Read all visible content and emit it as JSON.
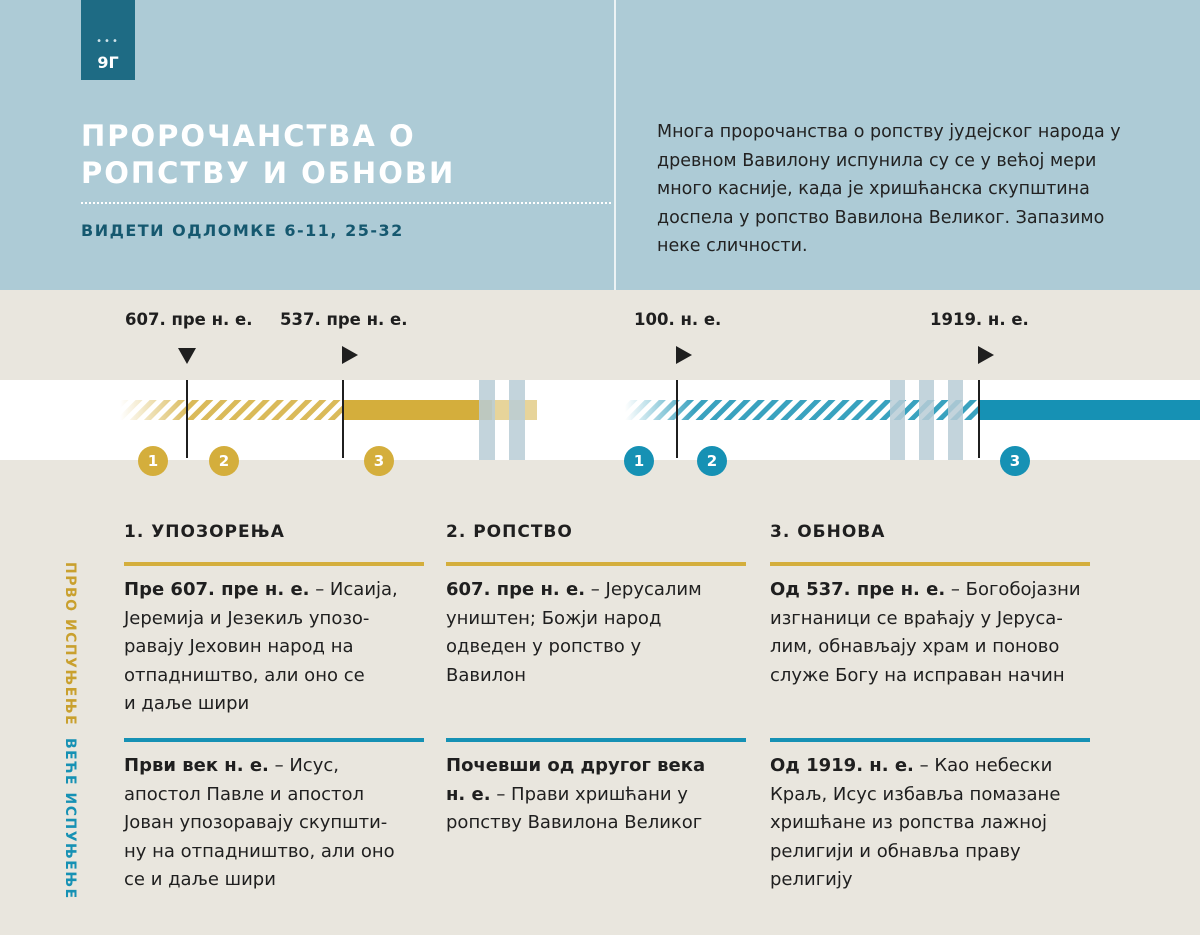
{
  "badge": {
    "label": "9Г",
    "dots": "•••"
  },
  "header": {
    "title_line1": "ПРОРОЧАНСТВА О",
    "title_line2": "РОПСТВУ И ОБНОВИ",
    "subtitle": "ВИДЕТИ ОДЛОМКЕ 6-11, 25-32",
    "intro": "Многа пророчанства о ропству јудејског народа у древном Вавилону испунила су се у већој мери много касније, када је хришћанска скупштина доспела у ропство Вавилона Великог. Запазимо неке сличности."
  },
  "timeline": {
    "dates": [
      "607. пре н. е.",
      "537. пре н. е.",
      "100. н. е.",
      "1919. н. е."
    ],
    "gold_numbers": [
      "1",
      "2",
      "3"
    ],
    "blue_numbers": [
      "1",
      "2",
      "3"
    ],
    "colors": {
      "gold": "#d4ae3c",
      "blue": "#1691b4",
      "break": "#b9ccd6"
    }
  },
  "columns": {
    "headers": [
      "1. УПОЗОРЕЊА",
      "2. РОПСТВО",
      "3. ОБНОВА"
    ]
  },
  "rows": {
    "first_label_line1": "ПРВО",
    "first_label_line2": "ИСПУЊЕЊЕ",
    "second_label_line1": "ВЕЋЕ",
    "second_label_line2": "ИСПУЊЕЊЕ"
  },
  "first": [
    {
      "lead": "Пре 607. пре н. е.",
      "lines": [
        " – Исаија,",
        "Јеремија и Језекиљ упозо-",
        "равају Јеховин народ на",
        "отпадништво, али оно се",
        "и даље шири"
      ]
    },
    {
      "lead": "607. пре н. е.",
      "lines": [
        " – Јерусалим",
        "уништен; Божји народ",
        "одведен у ропство у",
        "Вавилон"
      ]
    },
    {
      "lead": "Од 537. пре н. е.",
      "lines": [
        " – Богобојазни",
        "изгнаници се враћају у Јеруса-",
        "лим, обнављају храм и поново",
        "служе Богу на исправан начин"
      ]
    }
  ],
  "second": [
    {
      "lead": "Први век н. е.",
      "lines": [
        " – Исус,",
        "апостол Павле и апостол",
        "Јован упозоравају скупшти-",
        "ну на отпадништво, али оно",
        "се и даље шири"
      ]
    },
    {
      "lead_line1": "Почевши од другог века",
      "lead_line2": "н. е.",
      "lines": [
        " – Прави хришћани у",
        "ропству Вавилона Великог"
      ]
    },
    {
      "lead": "Од 1919. н. е.",
      "lines": [
        " – Као небески",
        "Краљ, Исус избавља помазане",
        "хришћане из ропства лажној",
        "религији и обнавља праву",
        "религију"
      ]
    }
  ]
}
